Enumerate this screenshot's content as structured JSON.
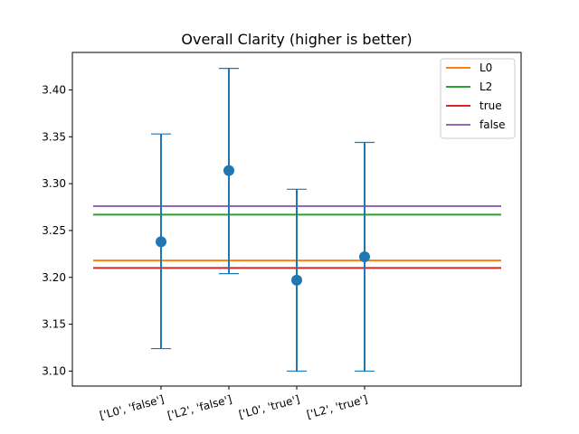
{
  "chart_data": {
    "type": "scatter",
    "title": "Overall Clarity (higher is better)",
    "xlabel": "",
    "ylabel": "",
    "categories": [
      "['L0', 'false']",
      "['L2', 'false']",
      "['L0', 'true']",
      "['L2', 'true']"
    ],
    "points": [
      {
        "category": "['L0', 'false']",
        "value": 3.238,
        "lower": 3.124,
        "upper": 3.353
      },
      {
        "category": "['L2', 'false']",
        "value": 3.314,
        "lower": 3.204,
        "upper": 3.423
      },
      {
        "category": "['L0', 'true']",
        "value": 3.197,
        "lower": 3.1,
        "upper": 3.294
      },
      {
        "category": "['L2', 'true']",
        "value": 3.222,
        "lower": 3.1,
        "upper": 3.344
      }
    ],
    "reference_lines": [
      {
        "name": "L0",
        "value": 3.218,
        "color": "#ff7f0e"
      },
      {
        "name": "L2",
        "value": 3.267,
        "color": "#2ca02c"
      },
      {
        "name": "true",
        "value": 3.21,
        "color": "#d62728"
      },
      {
        "name": "false",
        "value": 3.276,
        "color": "#9467bd"
      }
    ],
    "point_color": "#1f77b4",
    "ylim": [
      3.084,
      3.44
    ],
    "yticks": [
      "3.10",
      "3.15",
      "3.20",
      "3.25",
      "3.30",
      "3.35",
      "3.40"
    ],
    "grid": false,
    "legend_position": "top-right"
  }
}
